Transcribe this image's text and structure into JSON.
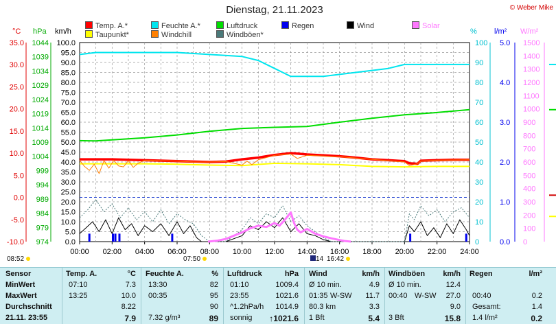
{
  "title": "Dienstag, 21.11.2023",
  "credit": "© Weber Mike",
  "legend": [
    {
      "label": "Temp. A.*",
      "color": "#ff0000"
    },
    {
      "label": "Taupunkt*",
      "color": "#ffff00"
    },
    {
      "label": "Feuchte A.*",
      "color": "#00e5ee"
    },
    {
      "label": "Windchill",
      "color": "#ff7f00"
    },
    {
      "label": "Luftdruck",
      "color": "#00dd00"
    },
    {
      "label": "Windböen*",
      "color": "#4a7a7a"
    },
    {
      "label": "Regen",
      "color": "#0000ee"
    },
    {
      "label": "Wind",
      "color": "#000000"
    },
    {
      "label": "Solar",
      "color": "#ff77ff"
    }
  ],
  "units": {
    "temp": "°C",
    "pressure": "hPa",
    "wind": "km/h",
    "humidity": "%",
    "rain": "l/m²",
    "solar": "W/m²"
  },
  "sun_times": {
    "left": "08:52",
    "sunrise": "07:50",
    "moon": "14",
    "sunset": "16:42"
  },
  "chart_data": {
    "type": "line",
    "title": "Dienstag, 21.11.2023",
    "x_unit": "hours",
    "x_ticks": [
      "00:00",
      "02:00",
      "04:00",
      "06:00",
      "08:00",
      "10:00",
      "12:00",
      "14:00",
      "16:00",
      "18:00",
      "20:00",
      "22:00",
      "24:00"
    ],
    "axes": {
      "temp": {
        "min": -10,
        "max": 35,
        "ticks": [
          "35.0",
          "30.0",
          "25.0",
          "20.0",
          "15.0",
          "10.0",
          "5.0",
          "0.0",
          "-5.0",
          "-10.0"
        ]
      },
      "pressure": {
        "min": 974,
        "max": 1044,
        "ticks": [
          "1044",
          "1039",
          "1034",
          "1029",
          "1024",
          "1019",
          "1014",
          "1009",
          "1004",
          "999",
          "994",
          "989",
          "984",
          "979",
          "974"
        ]
      },
      "wind": {
        "min": 0,
        "max": 100,
        "ticks": [
          "100.0",
          "95.0",
          "90.0",
          "85.0",
          "80.0",
          "75.0",
          "70.0",
          "65.0",
          "60.0",
          "55.0",
          "50.0",
          "45.0",
          "40.0",
          "35.0",
          "30.0",
          "25.0",
          "20.0",
          "15.0",
          "10.0",
          "5.0",
          "0.0"
        ]
      },
      "humidity": {
        "min": 0,
        "max": 100,
        "ticks": [
          "100",
          "90",
          "80",
          "70",
          "60",
          "50",
          "40",
          "30",
          "20",
          "10",
          "0"
        ]
      },
      "rain": {
        "min": 0,
        "max": 5,
        "ticks": [
          "5.0",
          "4.0",
          "3.0",
          "2.0",
          "1.0",
          "0.0"
        ]
      },
      "solar": {
        "min": 0,
        "max": 1500,
        "ticks": [
          "1500",
          "1400",
          "1300",
          "1200",
          "1100",
          "1000",
          "900",
          "800",
          "700",
          "600",
          "500",
          "400",
          "300",
          "200",
          "100",
          "0"
        ]
      }
    },
    "series": [
      {
        "name": "Temp. A.*",
        "axis": "temp",
        "color": "#ff0000",
        "width": 3.5,
        "x": [
          0,
          2,
          4,
          6,
          8,
          9,
          10,
          11,
          12,
          13,
          13.4,
          14,
          15,
          16,
          17,
          18,
          19,
          20,
          20.3,
          20.8,
          21,
          22,
          23,
          24
        ],
        "y": [
          8.6,
          8.6,
          8.4,
          8.2,
          8.0,
          8.1,
          8.6,
          9.0,
          9.6,
          10.0,
          9.9,
          9.7,
          9.5,
          9.3,
          9.0,
          8.6,
          8.4,
          8.2,
          7.7,
          7.6,
          8.3,
          8.4,
          8.5,
          8.5
        ]
      },
      {
        "name": "Taupunkt*",
        "axis": "temp",
        "color": "#ffff00",
        "width": 2,
        "x": [
          0,
          2,
          4,
          6,
          8,
          10,
          12,
          14,
          16,
          18,
          20,
          22,
          24
        ],
        "y": [
          7.6,
          7.6,
          7.6,
          7.5,
          7.3,
          7.2,
          7.7,
          7.6,
          7.4,
          7.0,
          6.9,
          7.0,
          7.0
        ]
      },
      {
        "name": "Windchill",
        "axis": "temp",
        "color": "#ff7f00",
        "width": 1,
        "x": [
          0,
          0.3,
          0.6,
          0.9,
          1.2,
          1.5,
          1.8,
          2.1,
          2.4,
          2.7,
          3.0,
          3.3,
          3.6,
          4.0,
          5,
          6,
          7,
          8,
          9,
          10,
          10.3,
          10.6,
          11,
          12,
          13,
          13.4,
          14,
          16,
          18,
          20,
          20.3,
          20.8,
          21,
          22,
          24
        ],
        "y": [
          8.4,
          7.0,
          6.1,
          7.5,
          5.4,
          8.3,
          6.6,
          8.4,
          7.1,
          6.9,
          8.3,
          6.8,
          7.7,
          8.4,
          8.3,
          8.2,
          8.0,
          8.0,
          8.1,
          7.3,
          8.2,
          7.4,
          8.5,
          9.5,
          9.8,
          8.8,
          9.5,
          9.2,
          8.6,
          8.0,
          7.2,
          7.6,
          8.2,
          8.4,
          8.5
        ]
      },
      {
        "name": "Feuchte A.*",
        "axis": "humidity",
        "color": "#00e5ee",
        "width": 2,
        "x": [
          0,
          1,
          2,
          4,
          6,
          8,
          10,
          11,
          12,
          12.5,
          13,
          13.3,
          14,
          15,
          16,
          17,
          18,
          19,
          20,
          22,
          24
        ],
        "y": [
          94,
          95,
          95,
          95,
          95,
          94,
          93,
          91,
          87,
          85,
          83,
          83,
          83,
          83,
          84,
          85,
          86,
          87,
          89,
          89,
          89
        ]
      },
      {
        "name": "Luftdruck",
        "axis": "pressure",
        "color": "#00dd00",
        "width": 2,
        "x": [
          0,
          1,
          2,
          4,
          6,
          8,
          10,
          12,
          14,
          16,
          18,
          20,
          22,
          24
        ],
        "y": [
          1009.5,
          1009.4,
          1009.8,
          1010.5,
          1011.5,
          1012.8,
          1013.8,
          1014.2,
          1014.5,
          1016.0,
          1017.4,
          1018.6,
          1019.4,
          1020.4
        ]
      },
      {
        "name": "Wind",
        "axis": "wind",
        "color": "#000000",
        "width": 1,
        "x": [
          0,
          0.4,
          0.8,
          1.2,
          1.6,
          2.0,
          2.4,
          2.8,
          3.2,
          3.6,
          4.0,
          4.5,
          5.0,
          5.5,
          6.0,
          6.4,
          6.8,
          7.2,
          7.5,
          8,
          9,
          10,
          10.5,
          11,
          11.5,
          12,
          12.5,
          13,
          13.5,
          14,
          14.5,
          15,
          15.5,
          16,
          16.5,
          17,
          18,
          19,
          20,
          20.3,
          20.6,
          21,
          21.4,
          21.8,
          22.2,
          22.6,
          23,
          23.4,
          23.8,
          24
        ],
        "y": [
          4,
          7,
          10,
          5,
          11,
          4,
          12,
          6,
          9,
          3,
          8,
          5,
          9,
          3,
          10,
          4,
          8,
          2,
          0,
          0,
          0,
          3,
          8,
          6,
          10,
          7,
          12,
          5,
          9,
          4,
          3,
          1,
          0,
          0,
          0,
          0,
          0,
          0,
          0,
          8,
          5,
          10,
          3,
          7,
          2,
          9,
          4,
          11,
          6,
          3
        ]
      },
      {
        "name": "Windböen*",
        "axis": "wind",
        "color": "#4a7a7a",
        "width": 1,
        "dash": true,
        "x": [
          0,
          0.5,
          1,
          1.5,
          2,
          2.5,
          3,
          3.5,
          4,
          4.5,
          5,
          5.5,
          6,
          6.5,
          7,
          7.5,
          8,
          9,
          10,
          10.5,
          11,
          11.5,
          12,
          12.5,
          13,
          13.5,
          14,
          14.5,
          15,
          15.5,
          16,
          17,
          18,
          19,
          20,
          20.3,
          20.6,
          21,
          21.5,
          22,
          22.5,
          23,
          23.5,
          24
        ],
        "y": [
          12,
          16,
          21,
          15,
          19,
          12,
          17,
          11,
          15,
          10,
          16,
          9,
          14,
          11,
          9,
          3,
          0,
          0,
          6,
          12,
          9,
          14,
          12,
          18,
          10,
          13,
          8,
          5,
          2,
          0,
          0,
          0,
          0,
          0,
          0,
          14,
          11,
          18,
          13,
          16,
          10,
          15,
          17,
          12
        ]
      },
      {
        "name": "Solar",
        "axis": "solar",
        "color": "#ff77ff",
        "width": 3,
        "x": [
          7.9,
          8.5,
          9,
          9.5,
          10,
          10.5,
          11,
          11.5,
          12,
          12.3,
          12.6,
          13,
          13.2,
          13.4,
          13.6,
          14,
          14.5,
          15,
          15.5,
          16,
          16.3,
          16.7
        ],
        "y": [
          0,
          8,
          20,
          45,
          70,
          100,
          120,
          110,
          140,
          120,
          160,
          220,
          140,
          90,
          70,
          95,
          60,
          40,
          25,
          12,
          5,
          0
        ]
      },
      {
        "name": "Regen",
        "axis": "rain",
        "color": "#0000ee",
        "type": "bar",
        "x": [
          0.6,
          2.05,
          2.2,
          2.45,
          5.7,
          20.35,
          23.8
        ],
        "y": [
          0.2,
          0.2,
          0.2,
          0.2,
          0.2,
          0.2,
          0.2
        ]
      }
    ]
  },
  "stats": {
    "headers": {
      "sensor": "Sensor",
      "temp": "Temp. A.",
      "temp_unit": "°C",
      "humid": "Feuchte A.",
      "humid_unit": "%",
      "press": "Luftdruck",
      "press_unit": "hPa",
      "wind": "Wind",
      "wind_unit": "km/h",
      "gust": "Windböen",
      "gust_unit": "km/h",
      "rain": "Regen",
      "rain_unit": "l/m²"
    },
    "rows": [
      {
        "label": "MinWert",
        "temp_time": "07:10",
        "temp_val": "7.3",
        "humid_time": "13:30",
        "humid_val": "82",
        "press_time": "01:10",
        "press_val": "1009.4",
        "wind_time": "Ø 10 min.",
        "wind_val": "4.9",
        "gust_time": "Ø 10 min.",
        "gust_val": "12.4",
        "rain_time": "",
        "rain_val": ""
      },
      {
        "label": "MaxWert",
        "temp_time": "13:25",
        "temp_val": "10.0",
        "humid_time": "00:35",
        "humid_val": "95",
        "press_time": "23:55",
        "press_val": "1021.6",
        "wind_time": "01:35",
        "wind_dir": "W-SW",
        "wind_val": "11.7",
        "gust_time": "00:40",
        "gust_dir": "W-SW",
        "gust_val": "27.0",
        "rain_time": "00:40",
        "rain_val": "0.2"
      },
      {
        "label": "Durchschnitt",
        "temp_time": "",
        "temp_val": "8.22",
        "humid_time": "",
        "humid_val": "90",
        "press_time": "^1.2hPa/h",
        "press_val": "1014.9",
        "wind_time": "80.3 km",
        "wind_val": "3.3",
        "gust_time": "",
        "gust_val": "9.0",
        "rain_time": "Gesamt:",
        "rain_val": "1.4"
      },
      {
        "label": "21.11. 23:55",
        "temp_time": "",
        "temp_val": "7.9",
        "humid_time": "7.32 g/m³",
        "humid_val": "89",
        "press_time": "sonnig",
        "press_val": "↑1021.6",
        "wind_time": "1 Bft",
        "wind_val": "5.4",
        "gust_time": "3 Bft",
        "gust_val": "15.8",
        "rain_time": "1.4 l/m²",
        "rain_val": "0.2"
      }
    ]
  }
}
